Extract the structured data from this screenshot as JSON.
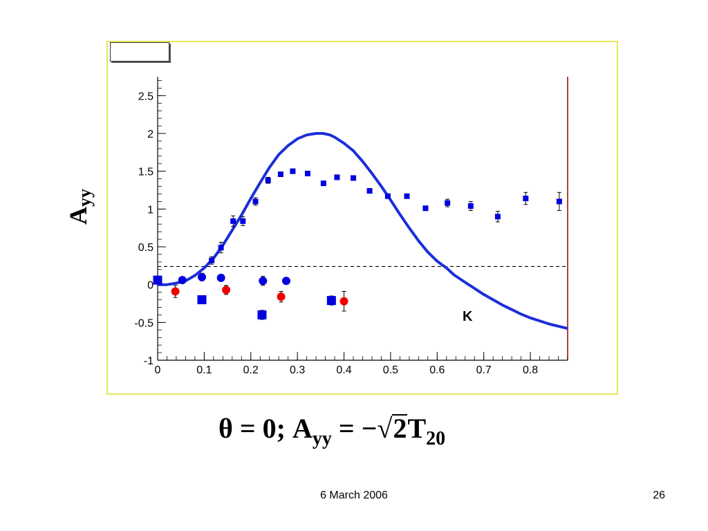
{
  "formula": {
    "theta": "θ",
    "eq1": "= 0;",
    "a": "A",
    "yy": "yy",
    "eq2": "= −",
    "sqrt": "√",
    "two": "2",
    "t": "T",
    "sub20": "20"
  },
  "footer": {
    "date": "6 March 2006",
    "page": "26"
  },
  "chart_data": {
    "type": "scatter",
    "ylabel_main": "A",
    "ylabel_sub": "yy",
    "xlim": [
      0,
      0.88
    ],
    "ylim": [
      -1,
      2.75
    ],
    "xticks": [
      "0",
      "0.1",
      "0.2",
      "0.3",
      "0.4",
      "0.5",
      "0.6",
      "0.7",
      "0.8"
    ],
    "yticks": [
      "-1",
      "-0.5",
      "0",
      "0.5",
      "1",
      "1.5",
      "2",
      "2.5"
    ],
    "annotation": "K",
    "reference_line": {
      "y": 0.24,
      "style": "dashed"
    },
    "colors": {
      "blue": "#0000e0",
      "red": "#ee0000",
      "curve": "#1a2ed8",
      "frame": "#e6e65a",
      "right_axis": "#990000"
    },
    "series": [
      {
        "marker": "small-square",
        "color": "#0000e0",
        "points": [
          {
            "x": 0.116,
            "y": 0.32,
            "err": 0.05
          },
          {
            "x": 0.136,
            "y": 0.49,
            "err": 0.07
          },
          {
            "x": 0.162,
            "y": 0.84,
            "err": 0.07
          },
          {
            "x": 0.183,
            "y": 0.84,
            "err": 0.06
          },
          {
            "x": 0.21,
            "y": 1.1,
            "err": 0.05
          },
          {
            "x": 0.237,
            "y": 1.38,
            "err": 0.04
          },
          {
            "x": 0.264,
            "y": 1.46,
            "err": 0.03
          },
          {
            "x": 0.29,
            "y": 1.5,
            "err": 0.03
          },
          {
            "x": 0.322,
            "y": 1.47,
            "err": 0.03
          },
          {
            "x": 0.356,
            "y": 1.34,
            "err": 0.03
          },
          {
            "x": 0.385,
            "y": 1.42,
            "err": 0.03
          },
          {
            "x": 0.42,
            "y": 1.41,
            "err": 0.03
          },
          {
            "x": 0.455,
            "y": 1.24,
            "err": 0.03
          },
          {
            "x": 0.494,
            "y": 1.17,
            "err": 0.03
          },
          {
            "x": 0.535,
            "y": 1.17,
            "err": 0.03
          },
          {
            "x": 0.575,
            "y": 1.01,
            "err": 0.03
          },
          {
            "x": 0.622,
            "y": 1.08,
            "err": 0.05
          },
          {
            "x": 0.672,
            "y": 1.04,
            "err": 0.06
          },
          {
            "x": 0.73,
            "y": 0.9,
            "err": 0.07
          },
          {
            "x": 0.79,
            "y": 1.14,
            "err": 0.08
          },
          {
            "x": 0.862,
            "y": 1.1,
            "err": 0.12
          }
        ]
      },
      {
        "marker": "large-square",
        "color": "#0000e0",
        "points": [
          {
            "x": 0.0,
            "y": 0.06,
            "err": 0.04
          },
          {
            "x": 0.095,
            "y": -0.2,
            "err": 0.04
          },
          {
            "x": 0.224,
            "y": -0.4,
            "err": 0.06
          },
          {
            "x": 0.373,
            "y": -0.21,
            "err": 0.06
          }
        ]
      },
      {
        "marker": "circle",
        "color": "#0000e0",
        "points": [
          {
            "x": 0.053,
            "y": 0.06,
            "err": 0.04
          },
          {
            "x": 0.095,
            "y": 0.1,
            "err": 0.05
          },
          {
            "x": 0.136,
            "y": 0.09,
            "err": 0.04
          },
          {
            "x": 0.226,
            "y": 0.05,
            "err": 0.06
          },
          {
            "x": 0.276,
            "y": 0.05,
            "err": 0.04
          }
        ]
      },
      {
        "marker": "circle",
        "color": "#ee0000",
        "points": [
          {
            "x": 0.038,
            "y": -0.09,
            "err": 0.08
          },
          {
            "x": 0.147,
            "y": -0.07,
            "err": 0.06
          },
          {
            "x": 0.265,
            "y": -0.16,
            "err": 0.07
          },
          {
            "x": 0.4,
            "y": -0.22,
            "err": 0.13
          }
        ]
      }
    ],
    "curve": {
      "x": [
        0.0,
        0.02,
        0.04,
        0.06,
        0.08,
        0.1,
        0.12,
        0.14,
        0.16,
        0.18,
        0.2,
        0.22,
        0.24,
        0.26,
        0.28,
        0.3,
        0.32,
        0.34,
        0.355,
        0.37,
        0.38,
        0.4,
        0.42,
        0.44,
        0.46,
        0.48,
        0.5,
        0.52,
        0.54,
        0.56,
        0.58,
        0.6,
        0.62,
        0.636,
        0.66,
        0.68,
        0.7,
        0.72,
        0.74,
        0.76,
        0.78,
        0.8,
        0.82,
        0.84,
        0.86,
        0.88
      ],
      "y": [
        0.0,
        0.0,
        0.02,
        0.05,
        0.12,
        0.22,
        0.35,
        0.52,
        0.72,
        0.92,
        1.14,
        1.35,
        1.55,
        1.72,
        1.84,
        1.93,
        1.98,
        2.0,
        2.0,
        1.98,
        1.95,
        1.87,
        1.77,
        1.63,
        1.47,
        1.3,
        1.12,
        0.93,
        0.75,
        0.58,
        0.43,
        0.31,
        0.22,
        0.13,
        0.03,
        -0.05,
        -0.13,
        -0.2,
        -0.27,
        -0.33,
        -0.39,
        -0.44,
        -0.48,
        -0.52,
        -0.55,
        -0.58
      ]
    }
  }
}
